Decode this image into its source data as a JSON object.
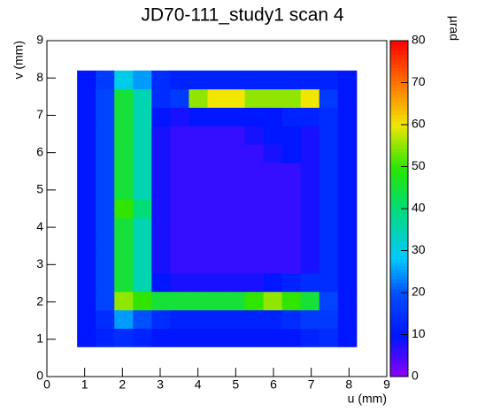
{
  "chart_data": {
    "type": "heatmap",
    "title": "JD70-111_study1 scan 4",
    "x_label": "u (mm)",
    "y_label": "v (mm)",
    "z_label": "µrad",
    "xlim": [
      0,
      9
    ],
    "ylim": [
      0,
      9
    ],
    "zlim": [
      0,
      80
    ],
    "xticks": [
      0,
      1,
      2,
      3,
      4,
      5,
      6,
      7,
      8,
      9
    ],
    "yticks": [
      0,
      1,
      2,
      3,
      4,
      5,
      6,
      7,
      8,
      9
    ],
    "zticks": [
      0,
      10,
      20,
      30,
      40,
      50,
      60,
      70,
      80
    ],
    "x_range": [
      0.8,
      8.2
    ],
    "y_range": [
      0.8,
      8.2
    ],
    "z": [
      [
        10,
        12,
        14,
        12,
        10,
        10,
        10,
        10,
        10,
        10,
        10,
        10,
        12,
        14,
        10
      ],
      [
        10,
        14,
        25,
        20,
        14,
        12,
        12,
        12,
        12,
        12,
        12,
        14,
        16,
        16,
        10
      ],
      [
        10,
        18,
        55,
        50,
        45,
        45,
        45,
        45,
        45,
        50,
        55,
        50,
        45,
        18,
        10
      ],
      [
        10,
        18,
        45,
        35,
        10,
        8,
        8,
        8,
        8,
        8,
        10,
        12,
        14,
        14,
        10
      ],
      [
        10,
        18,
        45,
        35,
        8,
        6,
        6,
        6,
        6,
        6,
        6,
        6,
        8,
        14,
        10
      ],
      [
        10,
        18,
        45,
        35,
        8,
        6,
        6,
        6,
        6,
        6,
        6,
        6,
        8,
        14,
        10
      ],
      [
        10,
        18,
        45,
        35,
        8,
        6,
        6,
        6,
        6,
        6,
        6,
        6,
        8,
        14,
        10
      ],
      [
        10,
        18,
        50,
        40,
        8,
        6,
        6,
        6,
        6,
        6,
        6,
        6,
        8,
        14,
        10
      ],
      [
        10,
        18,
        45,
        35,
        8,
        6,
        6,
        6,
        6,
        6,
        6,
        6,
        8,
        14,
        10
      ],
      [
        10,
        18,
        45,
        35,
        8,
        6,
        6,
        6,
        6,
        6,
        6,
        6,
        8,
        14,
        10
      ],
      [
        10,
        18,
        45,
        35,
        8,
        6,
        6,
        6,
        6,
        6,
        8,
        10,
        8,
        14,
        10
      ],
      [
        10,
        18,
        45,
        35,
        8,
        6,
        6,
        6,
        6,
        8,
        10,
        10,
        8,
        14,
        10
      ],
      [
        10,
        18,
        45,
        35,
        10,
        8,
        10,
        10,
        10,
        10,
        10,
        12,
        12,
        14,
        10
      ],
      [
        10,
        18,
        45,
        35,
        14,
        16,
        55,
        60,
        60,
        55,
        55,
        55,
        60,
        16,
        10
      ],
      [
        10,
        16,
        30,
        25,
        14,
        12,
        12,
        12,
        12,
        12,
        12,
        12,
        12,
        12,
        10
      ]
    ]
  }
}
